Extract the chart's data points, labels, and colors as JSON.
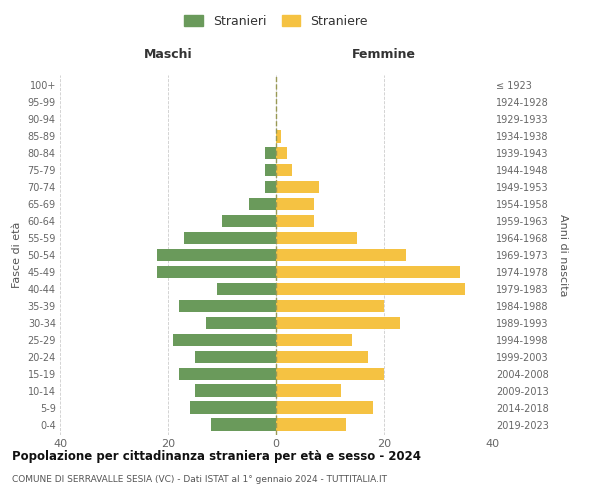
{
  "age_groups": [
    "0-4",
    "5-9",
    "10-14",
    "15-19",
    "20-24",
    "25-29",
    "30-34",
    "35-39",
    "40-44",
    "45-49",
    "50-54",
    "55-59",
    "60-64",
    "65-69",
    "70-74",
    "75-79",
    "80-84",
    "85-89",
    "90-94",
    "95-99",
    "100+"
  ],
  "birth_years": [
    "2019-2023",
    "2014-2018",
    "2009-2013",
    "2004-2008",
    "1999-2003",
    "1994-1998",
    "1989-1993",
    "1984-1988",
    "1979-1983",
    "1974-1978",
    "1969-1973",
    "1964-1968",
    "1959-1963",
    "1954-1958",
    "1949-1953",
    "1944-1948",
    "1939-1943",
    "1934-1938",
    "1929-1933",
    "1924-1928",
    "≤ 1923"
  ],
  "maschi": [
    12,
    16,
    15,
    18,
    15,
    19,
    13,
    18,
    11,
    22,
    22,
    17,
    10,
    5,
    2,
    2,
    2,
    0,
    0,
    0,
    0
  ],
  "femmine": [
    13,
    18,
    12,
    20,
    17,
    14,
    23,
    20,
    35,
    34,
    24,
    15,
    7,
    7,
    8,
    3,
    2,
    1,
    0,
    0,
    0
  ],
  "color_maschi": "#6a9a5b",
  "color_femmine": "#f5c242",
  "title_bold": "Popolazione per cittadinanza straniera per età e sesso - 2024",
  "subtitle": "COMUNE DI SERRAVALLE SESIA (VC) - Dati ISTAT al 1° gennaio 2024 - TUTTITALIA.IT",
  "ylabel_left": "Fasce di età",
  "ylabel_right": "Anni di nascita",
  "header_left": "Maschi",
  "header_right": "Femmine",
  "legend_maschi": "Stranieri",
  "legend_femmine": "Straniere",
  "xlim": 40,
  "background_color": "#ffffff",
  "grid_color": "#cccccc"
}
